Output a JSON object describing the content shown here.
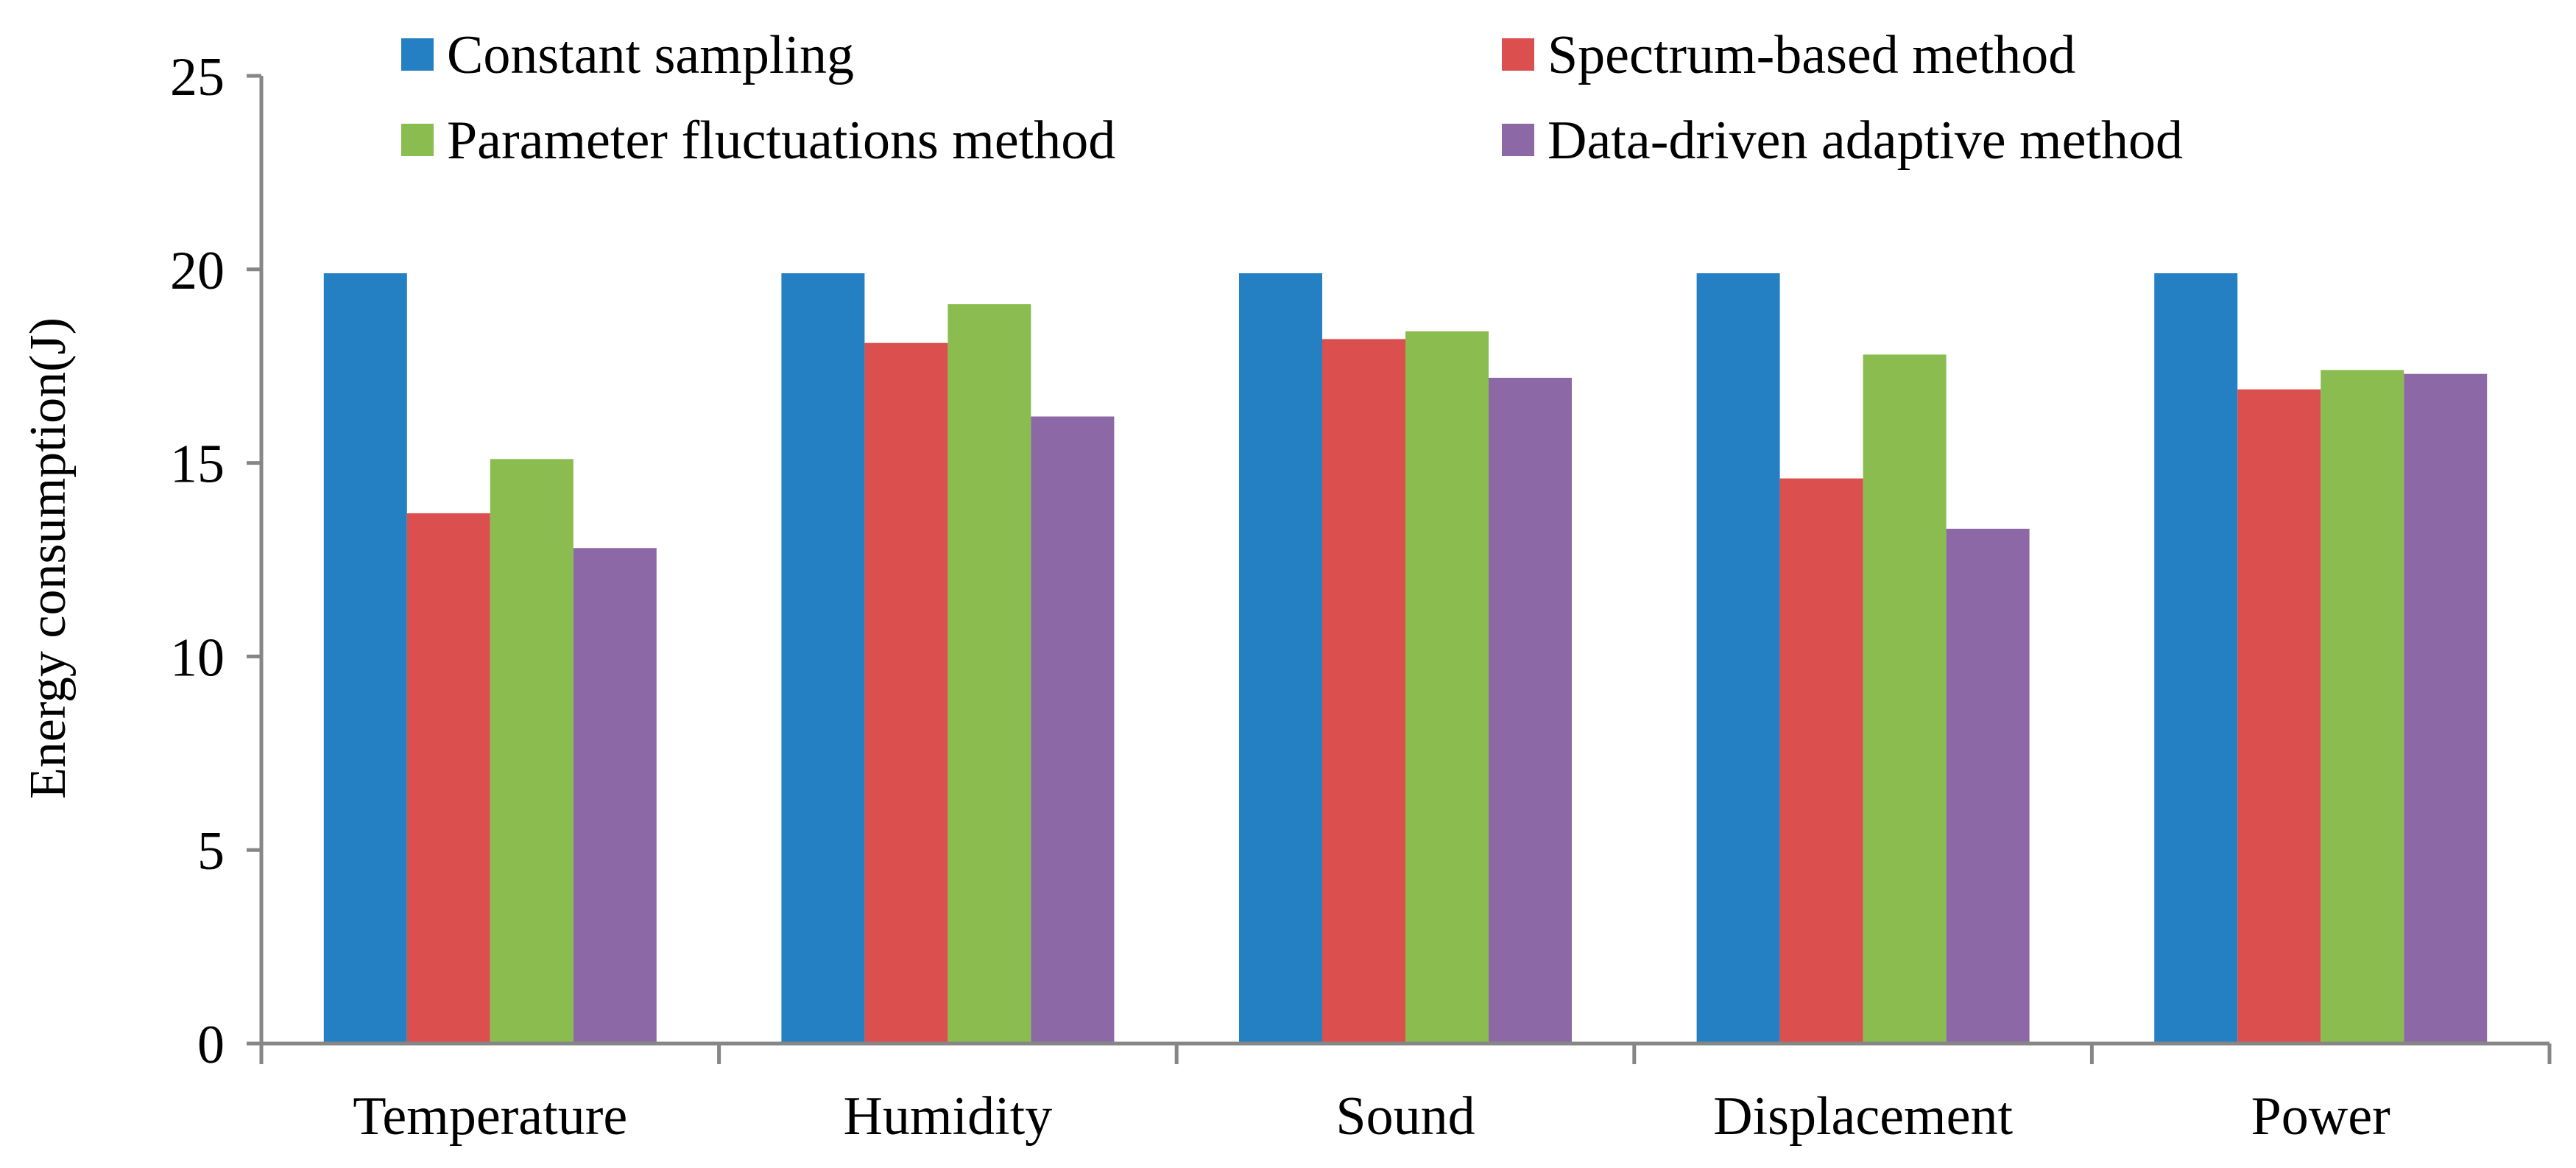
{
  "chart_data": {
    "type": "bar",
    "title": "",
    "xlabel": "",
    "ylabel": "Energy consumption(J)",
    "ylim": [
      0,
      25
    ],
    "yticks": [
      0,
      5,
      10,
      15,
      20,
      25
    ],
    "grid": false,
    "legend_position": "top",
    "categories": [
      "Temperature",
      "Humidity",
      "Sound",
      "Displacement",
      "Power"
    ],
    "series": [
      {
        "name": "Constant sampling",
        "color": "#2580C3",
        "values": [
          19.9,
          19.9,
          19.9,
          19.9,
          19.9
        ]
      },
      {
        "name": "Spectrum-based method",
        "color": "#DB4F4E",
        "values": [
          13.7,
          18.1,
          18.2,
          14.6,
          16.9
        ]
      },
      {
        "name": "Parameter fluctuations method",
        "color": "#8BBC4F",
        "values": [
          15.1,
          19.1,
          18.4,
          17.8,
          17.4
        ]
      },
      {
        "name": "Data-driven adaptive method",
        "color": "#8D68A6",
        "values": [
          12.8,
          16.2,
          17.2,
          13.3,
          17.3
        ]
      }
    ]
  }
}
